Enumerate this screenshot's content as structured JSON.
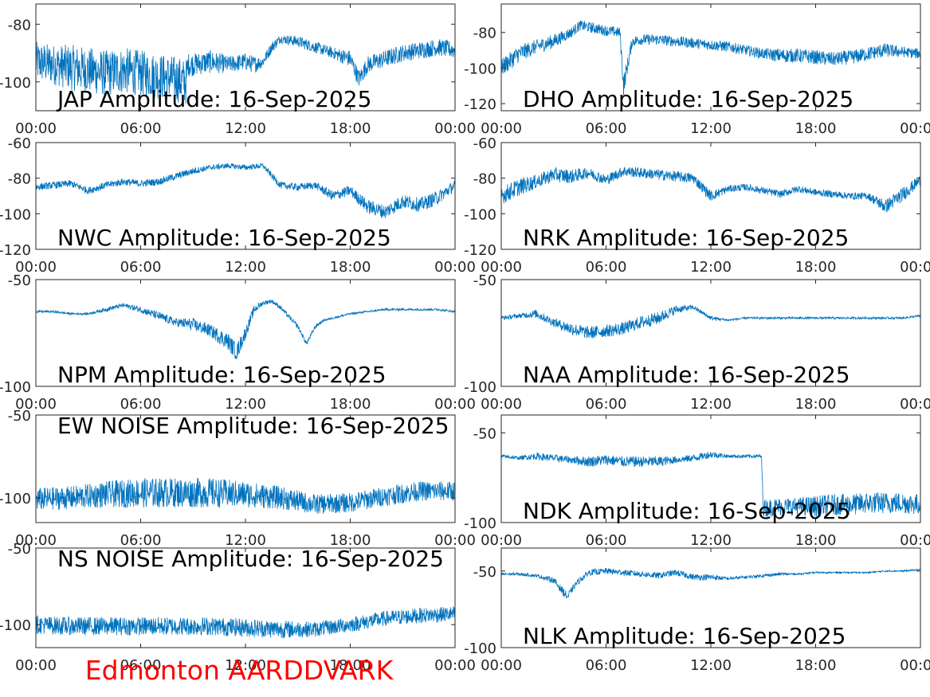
{
  "figure": {
    "footer": "Edmonton AARDDVARK",
    "footer_color": "#ff0000",
    "line_color": "#0072bd"
  },
  "chart_data": [
    {
      "type": "line",
      "title": "JAP Amplitude: 16-Sep-2025",
      "x_ticks": [
        "00:00",
        "06:00",
        "12:00",
        "18:00",
        "00:00"
      ],
      "y_ticks": [
        -80,
        -100
      ],
      "ylim": [
        -110,
        -73
      ],
      "grid": false,
      "series": [
        {
          "x": [
            0,
            1,
            2,
            3,
            4,
            5,
            6,
            7,
            8,
            8.6,
            8.7,
            9,
            10,
            11,
            12,
            12.5,
            13,
            13.5,
            14,
            15,
            16,
            17,
            18,
            18.5,
            19,
            20,
            21,
            22,
            23,
            24
          ],
          "values": [
            -93,
            -94,
            -95,
            -96,
            -97,
            -96,
            -97,
            -98,
            -99,
            -100,
            -94,
            -94,
            -93,
            -94,
            -93,
            -94,
            -93,
            -88,
            -85,
            -86,
            -88,
            -90,
            -92,
            -99,
            -94,
            -92,
            -90,
            -89,
            -88,
            -89
          ],
          "noise": [
            7,
            7,
            8,
            8,
            8,
            8,
            8,
            8,
            8,
            8,
            4,
            4,
            4,
            3,
            3,
            3,
            2,
            2,
            1.5,
            2,
            2,
            2,
            3,
            3,
            3,
            3,
            3,
            3,
            3,
            3
          ]
        }
      ]
    },
    {
      "type": "line",
      "title": "DHO Amplitude: 16-Sep-2025",
      "x_ticks": [
        "00:00",
        "06:00",
        "12:00",
        "18:00",
        "00:00"
      ],
      "y_ticks": [
        -80,
        -100,
        -120
      ],
      "ylim": [
        -124,
        -64
      ],
      "grid": false,
      "series": [
        {
          "x": [
            0,
            1,
            2,
            3,
            4,
            4.5,
            5,
            6,
            6.8,
            7,
            7.5,
            8,
            9,
            10,
            11,
            12,
            13,
            14,
            15,
            16,
            17,
            18,
            19,
            20,
            21,
            22,
            23,
            24
          ],
          "values": [
            -100,
            -92,
            -88,
            -85,
            -80,
            -76,
            -77,
            -79,
            -80,
            -110,
            -85,
            -84,
            -84,
            -85,
            -86,
            -87,
            -88,
            -90,
            -92,
            -93,
            -93,
            -94,
            -95,
            -94,
            -92,
            -90,
            -91,
            -92
          ],
          "noise": [
            5,
            5,
            4,
            4,
            3,
            3,
            3,
            3,
            3,
            6,
            3,
            3,
            3,
            3,
            3,
            3,
            3,
            3,
            3,
            4,
            4,
            4,
            4,
            4,
            4,
            4,
            3,
            3
          ]
        }
      ]
    },
    {
      "type": "line",
      "title": "NWC Amplitude: 16-Sep-2025",
      "x_ticks": [
        "00:00",
        "06:00",
        "12:00",
        "18:00",
        "00:00"
      ],
      "y_ticks": [
        -60,
        -80,
        -100,
        -120
      ],
      "ylim": [
        -120,
        -60
      ],
      "grid": false,
      "series": [
        {
          "x": [
            0,
            1,
            2,
            3,
            4,
            5,
            6,
            7,
            8,
            9,
            10,
            11,
            12,
            13,
            14,
            15,
            16,
            17,
            18,
            19,
            20,
            21,
            22,
            23,
            24
          ],
          "values": [
            -85,
            -84,
            -83,
            -87,
            -84,
            -82,
            -83,
            -82,
            -79,
            -76,
            -74,
            -73,
            -74,
            -73,
            -84,
            -85,
            -84,
            -90,
            -87,
            -96,
            -99,
            -93,
            -95,
            -91,
            -84
          ],
          "noise": [
            2,
            2,
            2,
            2,
            2,
            2,
            2,
            2,
            2,
            2,
            1.5,
            1.5,
            1.5,
            1.5,
            2,
            2,
            2,
            3,
            3,
            4,
            4,
            4,
            4,
            4,
            3
          ]
        }
      ]
    },
    {
      "type": "line",
      "title": "NRK Amplitude: 16-Sep-2025",
      "x_ticks": [
        "00:00",
        "06:00",
        "12:00",
        "18:00",
        "00:00"
      ],
      "y_ticks": [
        -60,
        -80,
        -100,
        -120
      ],
      "ylim": [
        -120,
        -60
      ],
      "grid": false,
      "series": [
        {
          "x": [
            0,
            1,
            2,
            3,
            4,
            5,
            6,
            7,
            8,
            9,
            10,
            11,
            12,
            13,
            14,
            15,
            16,
            17,
            18,
            19,
            20,
            21,
            22,
            23,
            24
          ],
          "values": [
            -90,
            -85,
            -82,
            -78,
            -79,
            -77,
            -81,
            -76,
            -77,
            -78,
            -79,
            -80,
            -90,
            -86,
            -85,
            -87,
            -89,
            -86,
            -88,
            -89,
            -90,
            -90,
            -96,
            -89,
            -81
          ],
          "noise": [
            5,
            5,
            4,
            4,
            4,
            3,
            3,
            3,
            3,
            3,
            3,
            3,
            3,
            2,
            2,
            2,
            2,
            2,
            2,
            2,
            2,
            2,
            4,
            4,
            3
          ]
        }
      ]
    },
    {
      "type": "line",
      "title": "NPM Amplitude: 16-Sep-2025",
      "x_ticks": [
        "00:00",
        "06:00",
        "12:00",
        "18:00",
        "00:00"
      ],
      "y_ticks": [
        -50,
        -100
      ],
      "ylim": [
        -100,
        -50
      ],
      "grid": false,
      "series": [
        {
          "x": [
            0,
            1,
            2,
            3,
            4,
            5,
            6,
            7,
            8,
            9,
            10,
            11,
            11.5,
            12,
            12.5,
            13,
            13.5,
            14,
            15,
            15.5,
            16,
            16.5,
            17,
            18,
            19,
            20,
            21,
            22,
            23,
            24
          ],
          "values": [
            -65,
            -65,
            -66,
            -66,
            -64,
            -62,
            -64,
            -67,
            -70,
            -71,
            -74,
            -79,
            -84,
            -75,
            -64,
            -61,
            -60,
            -63,
            -72,
            -80,
            -72,
            -69,
            -68,
            -66,
            -65,
            -64,
            -64,
            -64,
            -64,
            -65
          ],
          "noise": [
            0.5,
            0.5,
            0.5,
            0.5,
            1,
            1,
            1.5,
            2,
            2,
            3,
            3,
            4,
            4,
            3,
            2,
            1,
            1,
            1,
            1,
            1,
            1,
            0.5,
            0.5,
            0.5,
            0.5,
            0.5,
            0.5,
            0.5,
            0.5,
            0.5
          ]
        }
      ]
    },
    {
      "type": "line",
      "title": "NAA Amplitude: 16-Sep-2025",
      "x_ticks": [
        "00:00",
        "06:00",
        "12:00",
        "18:00",
        "00:00"
      ],
      "y_ticks": [
        -50,
        -100
      ],
      "ylim": [
        -100,
        -50
      ],
      "grid": false,
      "series": [
        {
          "x": [
            0,
            1,
            2,
            3,
            4,
            5,
            6,
            7,
            8,
            9,
            10,
            11,
            12,
            13,
            14,
            15,
            16,
            17,
            18,
            19,
            20,
            21,
            22,
            23,
            24
          ],
          "values": [
            -68,
            -67,
            -66,
            -70,
            -73,
            -75,
            -74,
            -73,
            -70,
            -68,
            -64,
            -63,
            -68,
            -69,
            -68,
            -68,
            -68,
            -68,
            -68,
            -68,
            -68,
            -68,
            -68,
            -68,
            -67
          ],
          "noise": [
            1,
            1,
            2,
            2,
            3,
            3,
            3,
            3,
            3,
            3,
            2,
            1,
            1,
            0.5,
            0.5,
            0.5,
            0.5,
            0.5,
            0.5,
            0.5,
            0.5,
            0.5,
            0.5,
            0.5,
            0.5
          ]
        }
      ]
    },
    {
      "type": "line",
      "title": "EW NOISE Amplitude: 16-Sep-2025",
      "x_ticks": [
        "00:00",
        "06:00",
        "12:00",
        "18:00",
        "00:00"
      ],
      "y_ticks": [
        -50,
        -100
      ],
      "ylim": [
        -115,
        -50
      ],
      "grid": false,
      "series": [
        {
          "x": [
            0,
            2,
            4,
            6,
            8,
            10,
            12,
            14,
            16,
            18,
            20,
            22,
            24
          ],
          "values": [
            -101,
            -100,
            -98,
            -97,
            -97,
            -97,
            -98,
            -100,
            -104,
            -103,
            -99,
            -96,
            -96
          ],
          "noise": [
            7,
            7,
            8,
            9,
            9,
            9,
            8,
            7,
            6,
            6,
            6,
            6,
            6
          ]
        }
      ]
    },
    {
      "type": "line",
      "title": "NDK Amplitude: 16-Sep-2025",
      "x_ticks": [
        "00:00",
        "06:00",
        "12:00",
        "18:00",
        "00:00"
      ],
      "y_ticks": [
        -50,
        -100
      ],
      "ylim": [
        -100,
        -40
      ],
      "grid": false,
      "series": [
        {
          "x": [
            0,
            1,
            2,
            3,
            4,
            5,
            6,
            7,
            8,
            9,
            10,
            11,
            12,
            13,
            14,
            14.9,
            15,
            16,
            17,
            18,
            19,
            20,
            21,
            22,
            23,
            24
          ],
          "values": [
            -63,
            -64,
            -63,
            -64,
            -65,
            -66,
            -65,
            -66,
            -66,
            -66,
            -65,
            -64,
            -62,
            -63,
            -63,
            -63,
            -92,
            -91,
            -91,
            -91,
            -90,
            -90,
            -89,
            -89,
            -89,
            -90
          ],
          "noise": [
            1,
            1,
            2,
            2,
            2,
            3,
            3,
            3,
            3,
            3,
            2,
            2,
            2,
            1,
            1,
            1,
            5,
            5,
            5,
            6,
            6,
            6,
            6,
            6,
            6,
            6
          ]
        }
      ]
    },
    {
      "type": "line",
      "title": "NS NOISE Amplitude: 16-Sep-2025",
      "x_ticks": [
        "00:00",
        "06:00",
        "12:00",
        "18:00",
        "00:00"
      ],
      "y_ticks": [
        -50,
        -100
      ],
      "ylim": [
        -115,
        -50
      ],
      "grid": false,
      "series": [
        {
          "x": [
            0,
            2,
            4,
            6,
            8,
            10,
            12,
            14,
            16,
            18,
            20,
            22,
            24
          ],
          "values": [
            -100,
            -101,
            -101,
            -101,
            -101,
            -101,
            -102,
            -103,
            -103,
            -100,
            -96,
            -94,
            -93
          ],
          "noise": [
            6,
            6,
            6,
            6,
            6,
            6,
            6,
            6,
            5,
            5,
            5,
            5,
            5
          ]
        }
      ]
    },
    {
      "type": "line",
      "title": "NLK Amplitude: 16-Sep-2025",
      "x_ticks": [
        "00:00",
        "06:00",
        "12:00",
        "18:00",
        "00:00"
      ],
      "y_ticks": [
        -50,
        -100
      ],
      "ylim": [
        -100,
        -35
      ],
      "grid": false,
      "series": [
        {
          "x": [
            0,
            1,
            2,
            3,
            3.8,
            4,
            4.3,
            5,
            6,
            7,
            8,
            9,
            10,
            11,
            12,
            13,
            14,
            15,
            16,
            17,
            18,
            19,
            20,
            21,
            22,
            23,
            24
          ],
          "values": [
            -52,
            -52,
            -53,
            -56,
            -67,
            -63,
            -58,
            -51,
            -50,
            -51,
            -52,
            -53,
            -51,
            -54,
            -54,
            -55,
            -54,
            -53,
            -52,
            -52,
            -51,
            -51,
            -51,
            -51,
            -50,
            -50,
            -49
          ],
          "noise": [
            1,
            1,
            1,
            2,
            3,
            2,
            2,
            2,
            2,
            2,
            2,
            2,
            2,
            2,
            2,
            1,
            1,
            1,
            1,
            0.5,
            0.5,
            0.5,
            0.5,
            0.5,
            0.5,
            0.5,
            0.5
          ]
        }
      ]
    }
  ]
}
